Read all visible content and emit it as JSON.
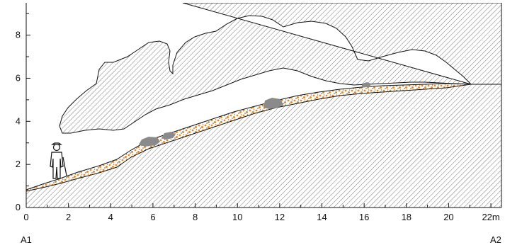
{
  "chart_data": {
    "type": "cross-section",
    "x_tick_labels": [
      "0",
      "2",
      "4",
      "6",
      "8",
      "10",
      "12",
      "14",
      "16",
      "18",
      "20",
      "22m"
    ],
    "y_tick_labels": [
      "0",
      "2",
      "4",
      "6",
      "8"
    ],
    "x_range": [
      0,
      22.5
    ],
    "y_range": [
      0,
      9.5
    ],
    "profile_start_label": "A1",
    "profile_end_label": "A2",
    "colors": {
      "rock_hatch": "#555555",
      "sediment": "#e08a2c",
      "boulder": "#8a8a8a",
      "outline": "#111111"
    },
    "icons": [
      "human-figure-icon"
    ]
  }
}
